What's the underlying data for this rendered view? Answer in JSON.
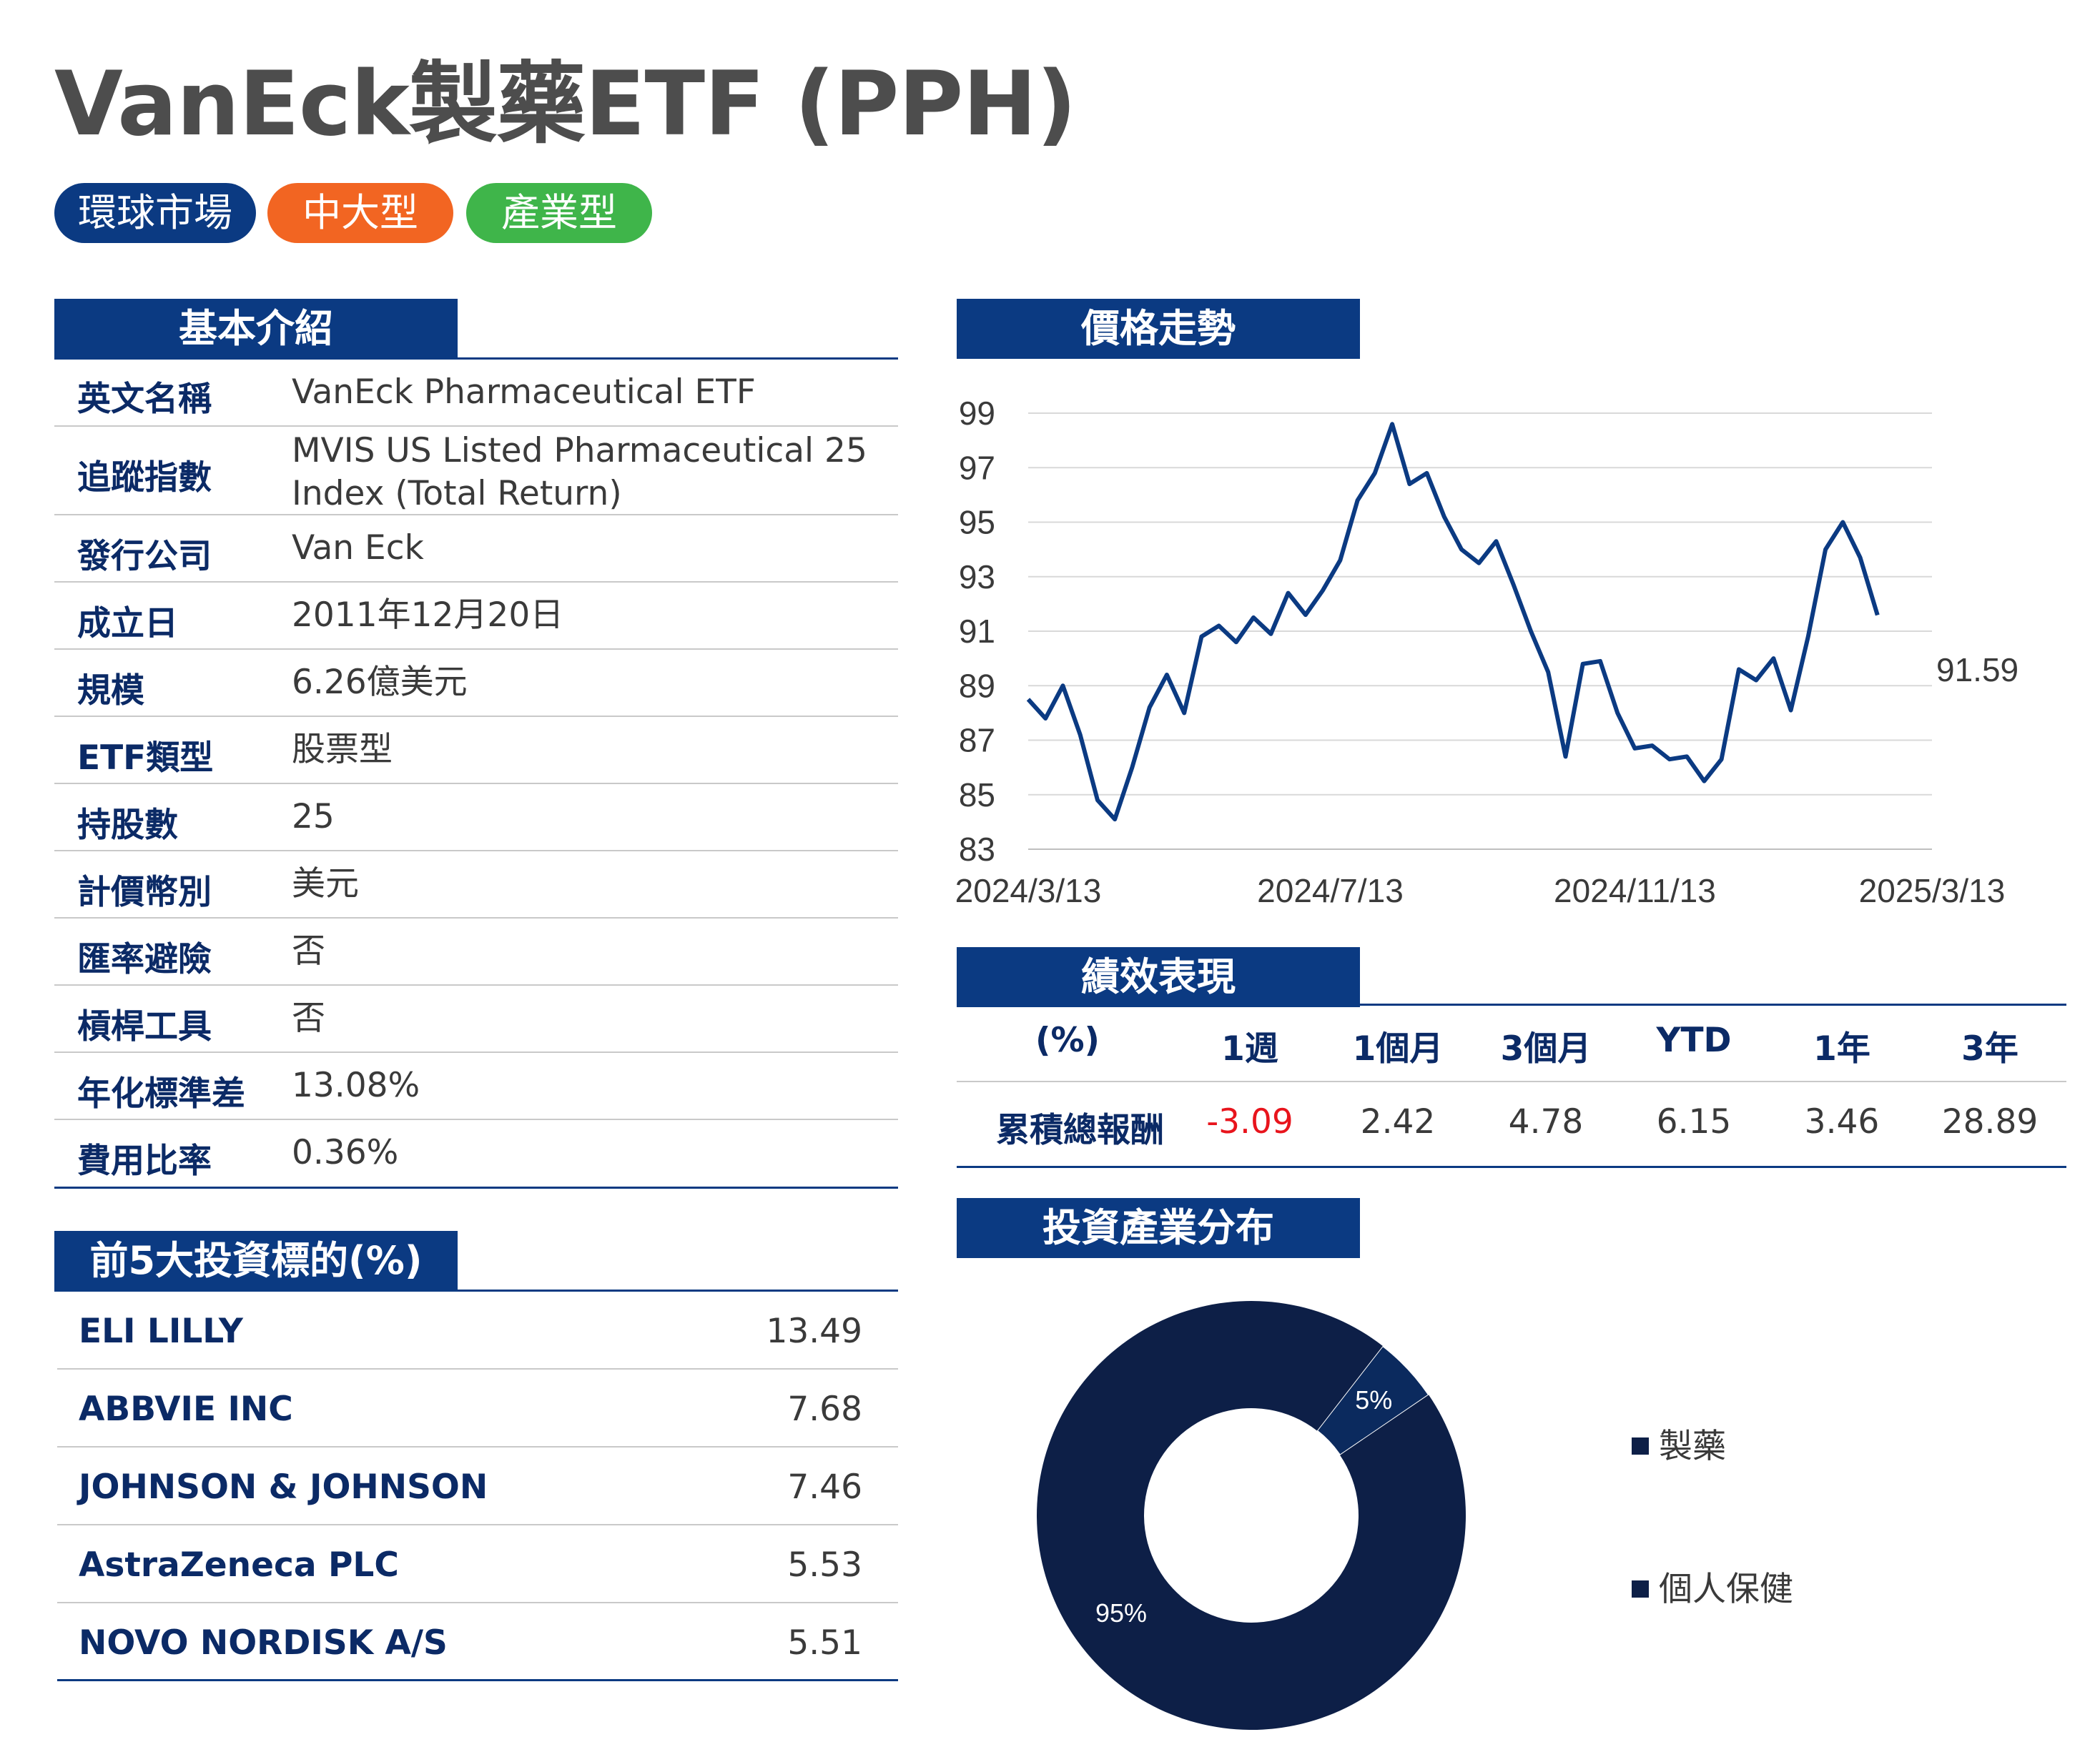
{
  "title": "VanEck製藥ETF (PPH)",
  "tags": [
    {
      "label": "環球市場",
      "color": "#0b3a82"
    },
    {
      "label": "中大型",
      "color": "#f26522"
    },
    {
      "label": "產業型",
      "color": "#3fb54a"
    }
  ],
  "basic": {
    "heading": "基本介紹",
    "rows": [
      {
        "label": "英文名稱",
        "value": "VanEck Pharmaceutical ETF"
      },
      {
        "label": "追蹤指數",
        "value": "MVIS US Listed Pharmaceutical 25 Index (Total Return)"
      },
      {
        "label": "發行公司",
        "value": "Van Eck"
      },
      {
        "label": "成立日",
        "value": "2011年12月20日"
      },
      {
        "label": "規模",
        "value": "6.26億美元"
      },
      {
        "label": "ETF類型",
        "value": "股票型"
      },
      {
        "label": "持股數",
        "value": "25"
      },
      {
        "label": "計價幣別",
        "value": "美元"
      },
      {
        "label": "匯率避險",
        "value": "否"
      },
      {
        "label": "槓桿工具",
        "value": "否"
      },
      {
        "label": "年化標準差",
        "value": "13.08%"
      },
      {
        "label": "費用比率",
        "value": "0.36%"
      }
    ]
  },
  "holdings": {
    "heading": "前5大投資標的(%)",
    "rows": [
      {
        "name": "ELI LILLY",
        "value": "13.49"
      },
      {
        "name": "ABBVIE INC",
        "value": "7.68"
      },
      {
        "name": "JOHNSON & JOHNSON",
        "value": "7.46"
      },
      {
        "name": "AstraZeneca PLC",
        "value": "5.53"
      },
      {
        "name": "NOVO NORDISK A/S",
        "value": "5.51"
      }
    ]
  },
  "price": {
    "heading": "價格走勢",
    "last_value_label": "91.59"
  },
  "performance": {
    "heading": "績效表現",
    "columns": [
      "(%)",
      "1週",
      "1個月",
      "3個月",
      "YTD",
      "1年",
      "3年"
    ],
    "row_label": "累積總報酬",
    "values": [
      "-3.09",
      "2.42",
      "4.78",
      "6.15",
      "3.46",
      "28.89"
    ],
    "negative_color": "#e8141c"
  },
  "industry": {
    "heading": "投資產業分布"
  },
  "chart_data": [
    {
      "type": "line",
      "title": "價格走勢",
      "xlabel": "",
      "ylabel": "",
      "x_ticks": [
        "2024/3/13",
        "2024/7/13",
        "2024/11/13",
        "2025/3/13"
      ],
      "y_ticks": [
        83,
        85,
        87,
        89,
        91,
        93,
        95,
        97,
        99
      ],
      "ylim": [
        83,
        99
      ],
      "xlim": [
        "2024/3/13",
        "2025/3/13"
      ],
      "grid": true,
      "line_color": "#0b3a82",
      "series": [
        {
          "x": [
            "2024/3/13",
            "2024/3/20",
            "2024/3/27",
            "2024/4/3",
            "2024/4/10",
            "2024/4/17",
            "2024/4/24",
            "2024/5/1",
            "2024/5/8",
            "2024/5/15",
            "2024/5/22",
            "2024/5/29",
            "2024/6/5",
            "2024/6/12",
            "2024/6/19",
            "2024/6/26",
            "2024/7/3",
            "2024/7/10",
            "2024/7/17",
            "2024/7/24",
            "2024/7/31",
            "2024/8/7",
            "2024/8/14",
            "2024/8/21",
            "2024/8/28",
            "2024/9/4",
            "2024/9/11",
            "2024/9/18",
            "2024/9/25",
            "2024/10/2",
            "2024/10/9",
            "2024/10/16",
            "2024/10/23",
            "2024/10/30",
            "2024/11/6",
            "2024/11/13",
            "2024/11/20",
            "2024/11/27",
            "2024/12/4",
            "2024/12/11",
            "2024/12/18",
            "2024/12/25",
            "2025/1/1",
            "2025/1/8",
            "2025/1/15",
            "2025/1/22",
            "2025/1/29",
            "2025/2/5",
            "2025/2/12",
            "2025/2/19",
            "2025/2/26",
            "2025/3/5",
            "2025/3/13"
          ],
          "values": [
            88.5,
            87.8,
            89.0,
            87.2,
            84.8,
            84.1,
            86.0,
            88.2,
            89.4,
            88.0,
            90.8,
            91.2,
            90.6,
            91.5,
            90.9,
            92.4,
            91.6,
            92.5,
            93.6,
            95.8,
            96.8,
            98.6,
            96.4,
            96.8,
            95.2,
            94.0,
            93.5,
            94.3,
            92.7,
            91.0,
            89.5,
            86.4,
            89.8,
            89.9,
            88.0,
            86.7,
            86.8,
            86.3,
            86.4,
            85.5,
            86.3,
            89.6,
            89.2,
            90.0,
            88.1,
            90.8,
            94.0,
            95.0,
            93.7,
            91.59,
            91.59,
            91.59,
            91.59
          ]
        }
      ],
      "last_value": 91.59
    },
    {
      "type": "pie",
      "title": "投資產業分布",
      "categories": [
        "製藥",
        "個人保健"
      ],
      "values": [
        95,
        5
      ],
      "value_labels": [
        "95%",
        "5%"
      ],
      "legend_position": "right",
      "colors": [
        "#0d1f47",
        "#0b2a5e"
      ]
    }
  ]
}
